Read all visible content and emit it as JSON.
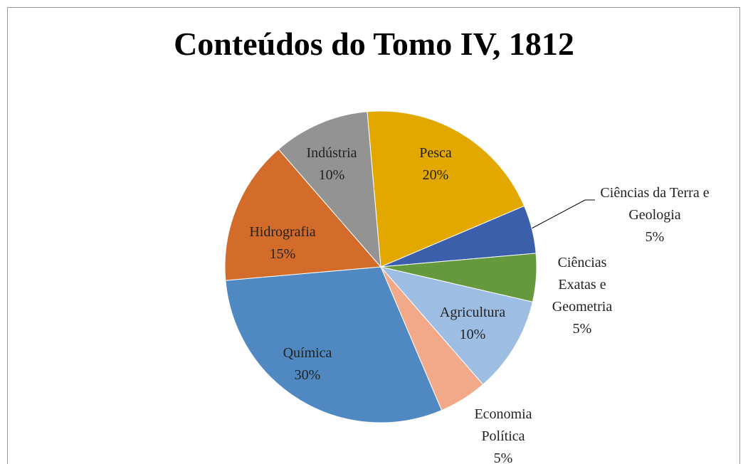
{
  "chart_data": {
    "type": "pie",
    "title": "Conteúdos do Tomo IV, 1812",
    "categories": [
      "Pesca",
      "Ciências da Terra e Geologia",
      "Ciências Exatas e Geometria",
      "Agricultura",
      "Economia Política",
      "Química",
      "Hidrografia",
      "Indústria"
    ],
    "values": [
      20,
      5,
      5,
      10,
      5,
      30,
      15,
      10
    ],
    "value_labels": [
      "20%",
      "5%",
      "5%",
      "10%",
      "5%",
      "30%",
      "15%",
      "10%"
    ],
    "colors": [
      "#e2a800",
      "#3b5fab",
      "#66993d",
      "#9dbde3",
      "#f2a98a",
      "#5089c1",
      "#d36c2b",
      "#939393"
    ]
  }
}
